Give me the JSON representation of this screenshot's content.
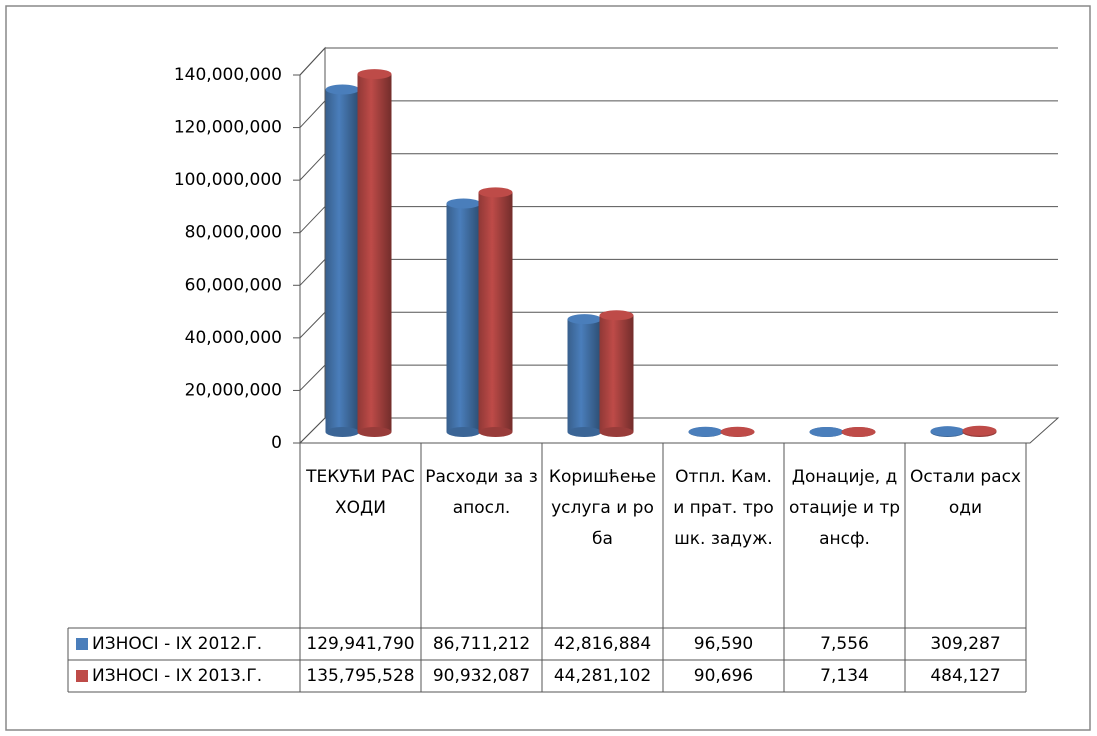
{
  "chart_data": {
    "type": "bar",
    "categories": [
      "ТЕКУЋИ РАСХОДИ",
      "Расходи за запосл.",
      "Коришћење услуга и роба",
      "Отпл. Кам. и прат. трошк. задуж.",
      "Донације, дотације и трансф.",
      "Остали расходи"
    ],
    "series": [
      {
        "name": "ИЗНОСI - IX 2012.Г.",
        "color": "#4a7ebb",
        "values": [
          129941790,
          86711212,
          42816884,
          96590,
          7556,
          309287
        ],
        "value_labels": [
          "129,941,790",
          "86,711,212",
          "42,816,884",
          "96,590",
          "7,556",
          "309,287"
        ]
      },
      {
        "name": "ИЗНОСI - IX 2013.Г.",
        "color": "#be4b48",
        "values": [
          135795528,
          90932087,
          44281102,
          90696,
          7134,
          484127
        ],
        "value_labels": [
          "135,795,528",
          "90,932,087",
          "44,281,102",
          "90,696",
          "7,134",
          "484,127"
        ]
      }
    ],
    "ylim": [
      0,
      140000000
    ],
    "yticks": [
      0,
      {
        "value": 20000000,
        "label": "20,000,000"
      },
      {
        "value": 40000000,
        "label": "40,000,000"
      },
      {
        "value": 60000000,
        "label": "60,000,000"
      },
      {
        "value": 80000000,
        "label": "80,000,000"
      },
      {
        "value": 100000000,
        "label": "100,000,000"
      },
      {
        "value": 120000000,
        "label": "120,000,000"
      },
      {
        "value": 140000000,
        "label": "140,000,000"
      }
    ],
    "grid": true
  }
}
